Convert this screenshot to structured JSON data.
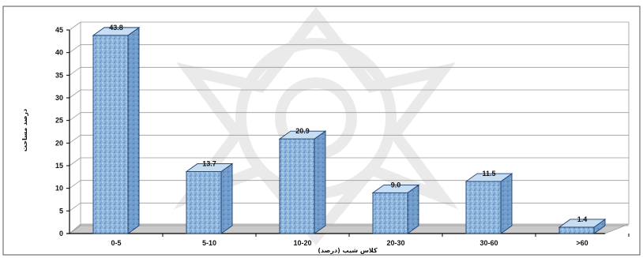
{
  "chart_data": {
    "type": "bar",
    "categories": [
      "0-5",
      "5-10",
      "10-20",
      "20-30",
      "30-60",
      ">60"
    ],
    "values": [
      43.8,
      13.7,
      20.9,
      9.0,
      11.5,
      1.4
    ],
    "data_labels": [
      "43.8",
      "13.7",
      "20.9",
      "9.0",
      "11.5",
      "1.4"
    ],
    "xlabel": "کلاس شیب (درصد)",
    "ylabel": "درصد مساحت",
    "ylim": [
      0,
      45
    ],
    "yticks": [
      0,
      5,
      10,
      15,
      20,
      25,
      30,
      35,
      40,
      45
    ],
    "grid": true,
    "legend": "none",
    "style": "3d-column",
    "colors": {
      "bar_fill": "#8fb6dd",
      "bar_side": "#6f9ccb",
      "bar_top": "#c7ddf2",
      "floor": "#c9c9c9",
      "grid": "#9a9a9a",
      "axis": "#000000",
      "watermark": "#dcdcdc"
    }
  }
}
